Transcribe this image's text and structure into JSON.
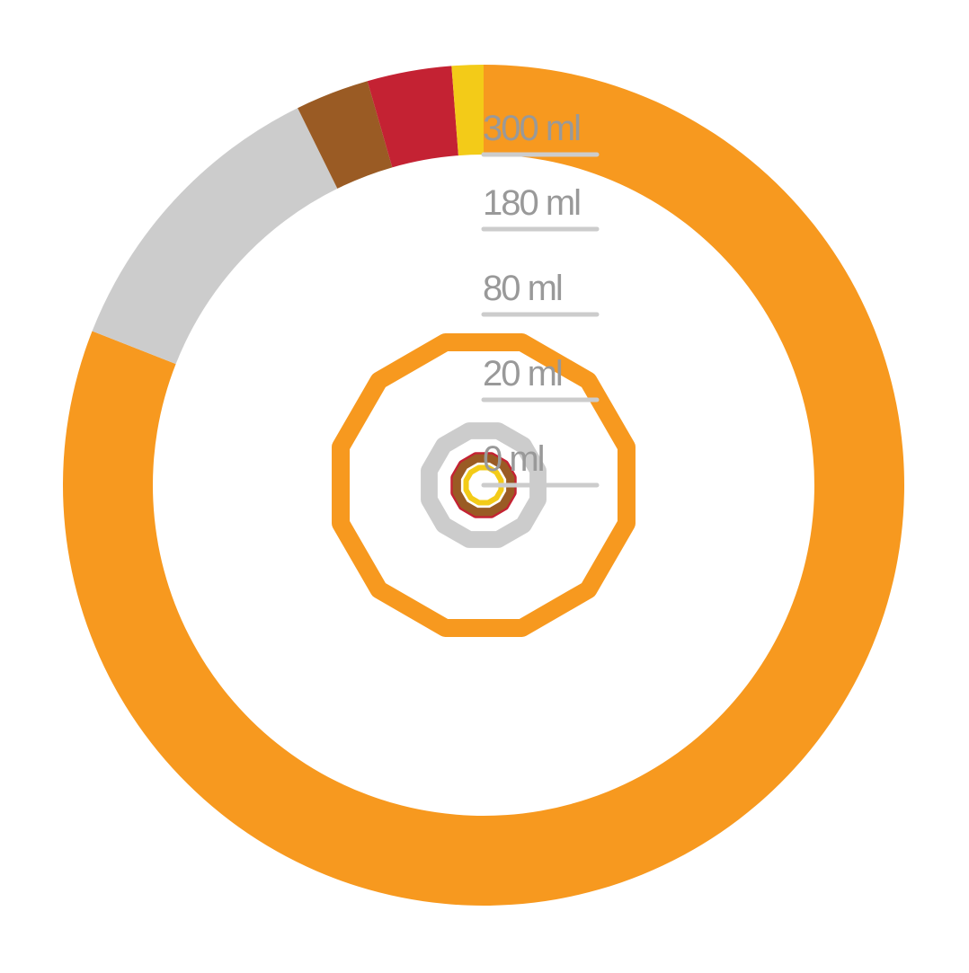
{
  "chart_data": {
    "type": "donut",
    "values": [
      60,
      8.7,
      2.1,
      2.4,
      0.9
    ],
    "colors": [
      "#f7991f",
      "#cccccc",
      "#9a5b24",
      "#c42233",
      "#f3cb18"
    ],
    "scale": "sqrt",
    "ylim": [
      0,
      300
    ],
    "yticks": [
      {
        "value": 0,
        "label": "0 ml"
      },
      {
        "value": 20,
        "label": "20 ml"
      },
      {
        "value": 80,
        "label": "80 ml"
      },
      {
        "value": 180,
        "label": "180 ml"
      },
      {
        "value": 300,
        "label": "300 ml"
      }
    ]
  }
}
